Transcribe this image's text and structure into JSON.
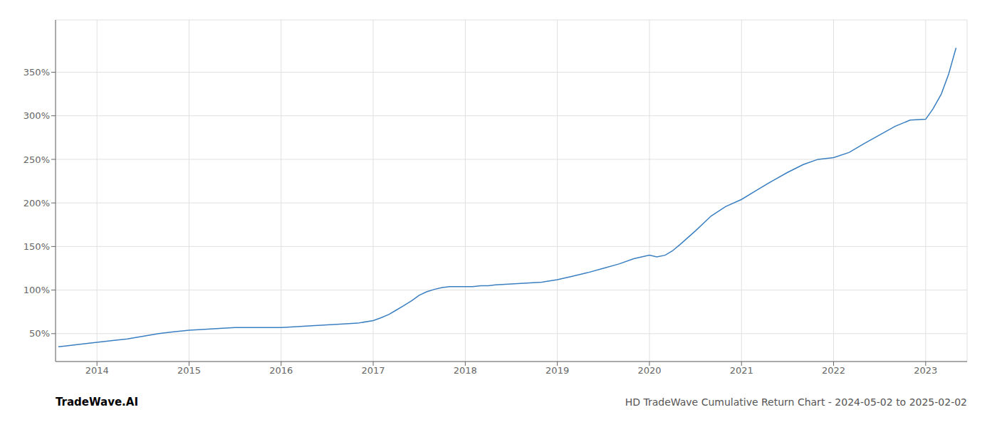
{
  "chart_data": {
    "type": "line",
    "title": "HD TradeWave Cumulative Return Chart - 2024-05-02 to 2025-02-02",
    "annotations": [
      "TradeWave.AI"
    ],
    "color": "#3a7fc1",
    "grid": true,
    "xlim": [
      2013.55,
      2023.45
    ],
    "xticks": [
      2014,
      2015,
      2016,
      2017,
      2018,
      2019,
      2020,
      2021,
      2022,
      2023
    ],
    "ylim": [
      18,
      410
    ],
    "yticks": [
      {
        "value": 50,
        "label": "50%"
      },
      {
        "value": 100,
        "label": "100%"
      },
      {
        "value": 150,
        "label": "150%"
      },
      {
        "value": 200,
        "label": "200%"
      },
      {
        "value": 250,
        "label": "250%"
      },
      {
        "value": 300,
        "label": "300%"
      },
      {
        "value": 350,
        "label": "350%"
      }
    ],
    "x": [
      2013.58,
      2013.67,
      2013.83,
      2014.0,
      2014.17,
      2014.33,
      2014.5,
      2014.67,
      2014.83,
      2015.0,
      2015.17,
      2015.33,
      2015.5,
      2015.67,
      2015.83,
      2016.0,
      2016.17,
      2016.33,
      2016.5,
      2016.67,
      2016.83,
      2017.0,
      2017.08,
      2017.17,
      2017.25,
      2017.33,
      2017.42,
      2017.5,
      2017.58,
      2017.67,
      2017.75,
      2017.83,
      2017.92,
      2018.0,
      2018.08,
      2018.17,
      2018.25,
      2018.33,
      2018.5,
      2018.67,
      2018.83,
      2019.0,
      2019.17,
      2019.33,
      2019.5,
      2019.67,
      2019.83,
      2020.0,
      2020.08,
      2020.17,
      2020.25,
      2020.33,
      2020.5,
      2020.67,
      2020.83,
      2021.0,
      2021.17,
      2021.33,
      2021.5,
      2021.67,
      2021.83,
      2022.0,
      2022.17,
      2022.33,
      2022.5,
      2022.67,
      2022.83,
      2023.0,
      2023.08,
      2023.17,
      2023.25,
      2023.33
    ],
    "values": [
      35,
      36,
      38,
      40,
      42,
      44,
      47,
      50,
      52,
      54,
      55,
      56,
      57,
      57,
      57,
      57,
      58,
      59,
      60,
      61,
      62,
      65,
      68,
      72,
      77,
      82,
      88,
      94,
      98,
      101,
      103,
      104,
      104,
      104,
      104,
      105,
      105,
      106,
      107,
      108,
      109,
      112,
      116,
      120,
      125,
      130,
      136,
      140,
      138,
      140,
      145,
      152,
      168,
      185,
      196,
      204,
      215,
      225,
      235,
      244,
      250,
      252,
      258,
      268,
      278,
      288,
      295,
      296,
      308,
      325,
      348,
      378
    ]
  }
}
